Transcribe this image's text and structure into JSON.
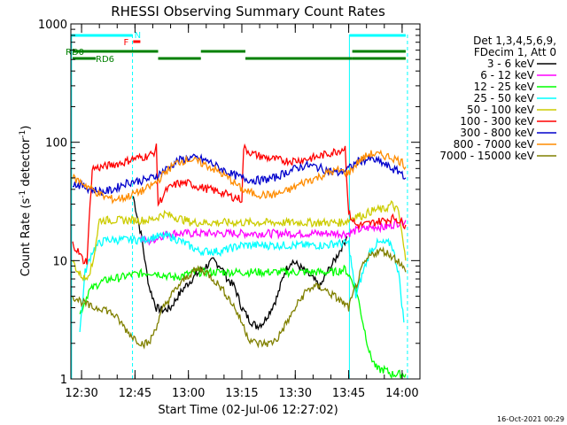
{
  "chart_data": {
    "type": "line",
    "title": "RHESSI Observing Summary Count Rates",
    "xlabel": "Start Time (02-Jul-06 12:27:02)",
    "ylabel_main": "Count Rate (s",
    "ylabel_sup1": "-1",
    "ylabel_mid": " detector",
    "ylabel_sup2": "-1",
    "ylabel_end": ")",
    "footer": "16-Oct-2021 00:29",
    "y_scale": "log",
    "ylim": [
      1,
      1000
    ],
    "x_unit": "minutes since 12:27:02",
    "xlim": [
      0,
      98
    ],
    "y_ticks": [
      {
        "value": 1,
        "label": "1"
      },
      {
        "value": 10,
        "label": "10"
      },
      {
        "value": 100,
        "label": "100"
      },
      {
        "value": 1000,
        "label": "1000"
      }
    ],
    "x_ticks": [
      {
        "value": 3,
        "label": "12:30"
      },
      {
        "value": 18,
        "label": "12:45"
      },
      {
        "value": 33,
        "label": "13:00"
      },
      {
        "value": 48,
        "label": "13:15"
      },
      {
        "value": 63,
        "label": "13:30"
      },
      {
        "value": 78,
        "label": "13:45"
      },
      {
        "value": 93,
        "label": "14:00"
      }
    ],
    "legend": {
      "position": "right",
      "header": [
        "Det 1,3,4,5,6,9,",
        "FDecim 1, Att 0"
      ],
      "entries": [
        {
          "label": "3 - 6 keV",
          "color": "#000000"
        },
        {
          "label": "6 - 12 keV",
          "color": "#ff00ff"
        },
        {
          "label": "12 - 25 keV",
          "color": "#00ff00"
        },
        {
          "label": "25 - 50 keV",
          "color": "#00ffff"
        },
        {
          "label": "50 - 100 keV",
          "color": "#cccc00"
        },
        {
          "label": "100 - 300 keV",
          "color": "#ff0000"
        },
        {
          "label": "300 - 800 keV",
          "color": "#0000cc"
        },
        {
          "label": "800 - 7000 keV",
          "color": "#ff8c00"
        },
        {
          "label": "7000 - 15000 keV",
          "color": "#808000"
        }
      ]
    },
    "flags": [
      {
        "label": "N",
        "color": "#00ffff",
        "segments": [
          [
            0,
            17.3
          ],
          [
            78.2,
            94
          ]
        ]
      },
      {
        "label": "F",
        "color": "#ff0000",
        "segments": [
          [
            17.5,
            19.5
          ]
        ]
      },
      {
        "label": "RD0",
        "color": "#008000",
        "segments": [
          [
            0.5,
            24.5
          ],
          [
            36.5,
            49
          ],
          [
            79,
            94
          ]
        ]
      },
      {
        "label": "RD6",
        "color": "#008000",
        "segments": [
          [
            0.5,
            7
          ],
          [
            24.5,
            36.5
          ],
          [
            49,
            79
          ],
          [
            79,
            94
          ]
        ]
      }
    ],
    "saa_lines": [
      {
        "x": 0.2,
        "style": "solid"
      },
      {
        "x": 17.3,
        "style": "dashed"
      },
      {
        "x": 78.2,
        "style": "solid"
      },
      {
        "x": 94.5,
        "style": "dashed"
      }
    ],
    "series": [
      {
        "name": "3 - 6 keV",
        "color": "#000000",
        "x": [
          17.5,
          18.5,
          20,
          21,
          22,
          24,
          26,
          28,
          30,
          32,
          34,
          36,
          38,
          40,
          42,
          44,
          46,
          48,
          50,
          52,
          54,
          56,
          58,
          60,
          62,
          64,
          66,
          68,
          70,
          72,
          74,
          76,
          77.5
        ],
        "y": [
          35,
          25,
          15,
          9,
          6,
          4,
          3.8,
          4,
          5,
          6,
          7,
          8,
          9,
          10,
          9,
          7,
          6,
          4,
          3.2,
          2.8,
          3,
          3.8,
          5,
          8,
          10,
          9,
          8,
          7,
          6,
          8,
          10,
          13,
          16
        ]
      },
      {
        "name": "6 - 12 keV",
        "color": "#ff00ff",
        "x": [
          19.5,
          20,
          22,
          24,
          26,
          28,
          30,
          32,
          34,
          36,
          38,
          40,
          42,
          44,
          46,
          48,
          50,
          52,
          54,
          56,
          58,
          60,
          62,
          64,
          66,
          68,
          70,
          72,
          74,
          76,
          78,
          80,
          82,
          84,
          86,
          88,
          90,
          92,
          94
        ],
        "y": [
          16,
          15,
          14.5,
          15.5,
          16.5,
          17,
          17,
          17,
          17,
          17,
          17,
          17,
          17,
          17,
          17,
          17,
          17,
          17,
          17,
          17,
          17,
          17,
          17,
          17,
          17,
          17,
          17,
          17,
          17,
          17,
          17,
          18,
          18.5,
          19,
          19.5,
          19,
          20,
          21,
          22
        ]
      },
      {
        "name": "12 - 25 keV",
        "color": "#00ff00",
        "x": [
          2.5,
          5,
          8,
          11,
          14,
          17,
          20,
          23,
          26,
          29,
          32,
          35,
          38,
          41,
          44,
          47,
          50,
          53,
          56,
          59,
          62,
          65,
          68,
          71,
          74,
          77,
          80,
          82,
          84,
          86,
          88,
          90,
          92,
          94
        ],
        "y": [
          3.5,
          5.5,
          6.5,
          7,
          7.2,
          7.6,
          7.8,
          8,
          7.6,
          7.2,
          7.6,
          8,
          8,
          8,
          8,
          8,
          8,
          8,
          8,
          8,
          8,
          8,
          8,
          8,
          8,
          8.5,
          6,
          3,
          1.6,
          1.2,
          1.2,
          1.1,
          1.1,
          1.1
        ]
      },
      {
        "name": "25 - 50 keV",
        "color": "#00ffff",
        "x": [
          2.5,
          4,
          6,
          8,
          10,
          12,
          14,
          16,
          18,
          20,
          22,
          24,
          26,
          28,
          30,
          32,
          34,
          36,
          38,
          40,
          42,
          44,
          46,
          48,
          50,
          52,
          54,
          56,
          58,
          60,
          62,
          64,
          66,
          68,
          70,
          72,
          74,
          76,
          78,
          80,
          82,
          84,
          86,
          88,
          90,
          92,
          93.5
        ],
        "y": [
          2.5,
          8,
          12,
          14,
          15,
          15,
          15,
          15,
          15,
          15,
          15.5,
          16,
          16,
          16,
          15,
          14,
          13,
          12,
          12,
          12,
          12,
          12.5,
          13,
          13.5,
          13.5,
          13.5,
          13.5,
          13.5,
          13.5,
          13.5,
          13.5,
          13.5,
          13.5,
          13.5,
          13.5,
          13.5,
          14,
          14,
          14,
          5,
          8,
          12,
          14,
          14,
          14,
          8,
          3
        ]
      },
      {
        "name": "50 - 100 keV",
        "color": "#cccc00",
        "x": [
          0.5,
          2,
          4,
          6,
          8,
          10,
          12,
          14,
          16,
          18,
          20,
          22,
          24,
          26,
          28,
          30,
          32,
          34,
          36,
          38,
          40,
          42,
          44,
          46,
          48,
          50,
          52,
          54,
          56,
          58,
          60,
          62,
          64,
          66,
          68,
          70,
          72,
          74,
          76,
          78,
          80,
          82,
          84,
          86,
          88,
          90,
          92,
          94
        ],
        "y": [
          10,
          8,
          7,
          9,
          22,
          22,
          22,
          22,
          22,
          22,
          22,
          22,
          23,
          25,
          24,
          23,
          22,
          21,
          21,
          21,
          21,
          21,
          21,
          21,
          21,
          21,
          21,
          21,
          21,
          21,
          21,
          21,
          21,
          21,
          21,
          21,
          21,
          21,
          21,
          22,
          24,
          24,
          26,
          27,
          27,
          30,
          26,
          10
        ]
      },
      {
        "name": "100 - 300 keV",
        "color": "#ff0000",
        "x": [
          0.5,
          2,
          3.5,
          4.5,
          6,
          9,
          12,
          15,
          17,
          19,
          21,
          23,
          24,
          24.5,
          27,
          30,
          33,
          36,
          39,
          42,
          45,
          48,
          48.5,
          51,
          54,
          57,
          60,
          63,
          66,
          69,
          72,
          75,
          77,
          78,
          80,
          82,
          85,
          88,
          91,
          94
        ],
        "y": [
          14,
          12,
          10,
          10,
          60,
          62,
          65,
          68,
          72,
          74,
          76,
          80,
          90,
          30,
          40,
          45,
          45,
          42,
          40,
          38,
          35,
          33,
          90,
          80,
          75,
          72,
          70,
          70,
          72,
          75,
          80,
          85,
          90,
          25,
          20,
          20,
          21,
          22,
          23,
          20
        ]
      },
      {
        "name": "300 - 800 keV",
        "color": "#0000cc",
        "x": [
          0.5,
          3,
          6,
          9,
          12,
          15,
          18,
          21,
          24,
          27,
          30,
          33,
          36,
          39,
          42,
          45,
          48,
          51,
          54,
          57,
          60,
          63,
          66,
          69,
          72,
          75,
          78,
          81,
          84,
          87,
          90,
          93,
          94
        ],
        "y": [
          45,
          43,
          40,
          38,
          40,
          45,
          47,
          48,
          52,
          60,
          70,
          74,
          73,
          68,
          60,
          54,
          50,
          48,
          48,
          50,
          55,
          60,
          64,
          62,
          58,
          55,
          60,
          70,
          72,
          68,
          60,
          55,
          50
        ]
      },
      {
        "name": "800 - 7000 keV",
        "color": "#ff8c00",
        "x": [
          0.5,
          3,
          6,
          9,
          12,
          15,
          18,
          21,
          24,
          27,
          30,
          33,
          36,
          39,
          42,
          45,
          48,
          51,
          54,
          57,
          60,
          63,
          66,
          69,
          72,
          75,
          78,
          81,
          84,
          87,
          90,
          93,
          94
        ],
        "y": [
          50,
          46,
          40,
          35,
          33,
          34,
          37,
          40,
          46,
          58,
          68,
          72,
          68,
          62,
          55,
          48,
          40,
          37,
          36,
          36,
          38,
          42,
          47,
          50,
          55,
          58,
          55,
          70,
          80,
          78,
          75,
          68,
          62
        ]
      },
      {
        "name": "7000 - 15000 keV",
        "color": "#808000",
        "x": [
          0.5,
          3,
          6,
          9,
          12,
          14,
          16,
          18,
          20,
          22,
          24,
          26,
          28,
          30,
          32,
          34,
          36,
          38,
          40,
          42,
          44,
          46,
          48,
          50,
          52,
          54,
          56,
          58,
          60,
          62,
          64,
          66,
          68,
          70,
          72,
          74,
          76,
          78,
          80,
          82,
          84,
          86,
          88,
          90,
          92,
          94
        ],
        "y": [
          5,
          4.5,
          4,
          4,
          3.5,
          3,
          2.5,
          2.2,
          2,
          2,
          2.8,
          4,
          5,
          6,
          7,
          8,
          8.5,
          8,
          7,
          6,
          5,
          4,
          3,
          2.2,
          2,
          2,
          2,
          2.2,
          2.8,
          3.5,
          4.5,
          5.5,
          6,
          6,
          5.5,
          5,
          4.5,
          4,
          6,
          9,
          11,
          12,
          12,
          11,
          10,
          8
        ]
      }
    ]
  }
}
